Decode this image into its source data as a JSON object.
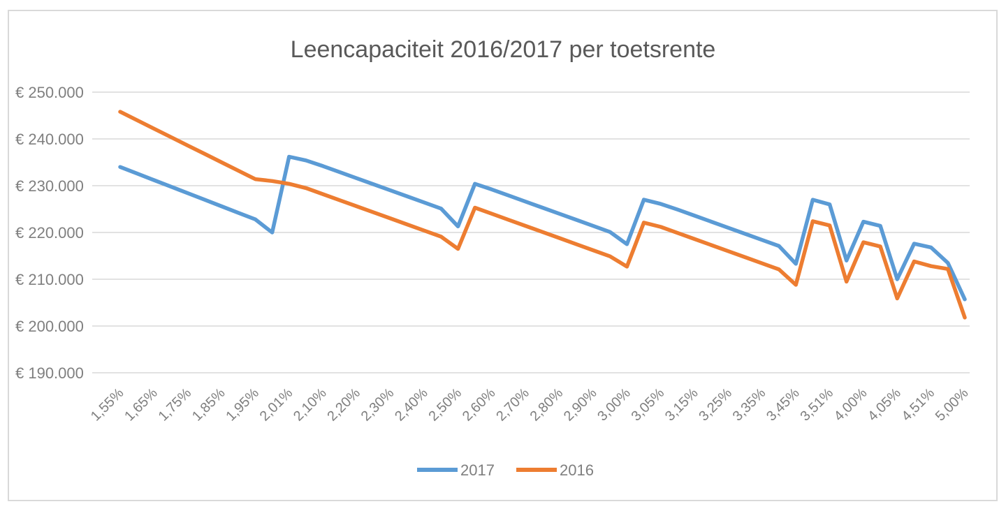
{
  "chart_data": {
    "type": "line",
    "title": "Leencapaciteit 2016/2017 per toetsrente",
    "xlabel": "",
    "ylabel": "",
    "ylim": [
      190000,
      250000
    ],
    "ytick_values": [
      190000,
      200000,
      210000,
      220000,
      230000,
      240000,
      250000
    ],
    "ytick_labels": [
      "€ 190.000",
      "€ 200.000",
      "€ 210.000",
      "€ 220.000",
      "€ 230.000",
      "€ 240.000",
      "€ 250.000"
    ],
    "grid": true,
    "legend_position": "bottom",
    "x": [
      "1,55%",
      "1,60%",
      "1,65%",
      "1,70%",
      "1,75%",
      "1,80%",
      "1,85%",
      "1,90%",
      "1,95%",
      "2,00%",
      "2,01%",
      "2,05%",
      "2,10%",
      "2,15%",
      "2,20%",
      "2,25%",
      "2,30%",
      "2,35%",
      "2,40%",
      "2,45%",
      "2,50%",
      "2,51%",
      "2,60%",
      "2,65%",
      "2,70%",
      "2,75%",
      "2,80%",
      "2,85%",
      "2,90%",
      "2,95%",
      "3,00%",
      "3,01%",
      "3,05%",
      "3,10%",
      "3,15%",
      "3,20%",
      "3,25%",
      "3,30%",
      "3,35%",
      "3,40%",
      "3,45%",
      "3,50%",
      "3,51%",
      "3,55%",
      "4,00%",
      "4,01%",
      "4,05%",
      "4,50%",
      "4,51%",
      "4,55%",
      "5,00%"
    ],
    "xtick_labels": [
      "1,55%",
      "1,65%",
      "1,75%",
      "1,85%",
      "1,95%",
      "2,01%",
      "2,10%",
      "2,20%",
      "2,30%",
      "2,40%",
      "2,50%",
      "2,60%",
      "2,70%",
      "2,80%",
      "2,90%",
      "3,00%",
      "3,05%",
      "3,15%",
      "3,25%",
      "3,35%",
      "3,45%",
      "3,51%",
      "4,00%",
      "4,05%",
      "4,51%",
      "5,00%"
    ],
    "xtick_indices": [
      0,
      2,
      4,
      6,
      8,
      10,
      12,
      14,
      16,
      18,
      20,
      22,
      24,
      26,
      28,
      30,
      32,
      34,
      36,
      38,
      40,
      42,
      44,
      46,
      48,
      50
    ],
    "series": [
      {
        "name": "2017",
        "color": "#5b9bd5",
        "values": [
          234000,
          232600,
          231200,
          229800,
          228400,
          227000,
          225600,
          224200,
          222800,
          220000,
          236200,
          235400,
          234200,
          232900,
          231600,
          230300,
          229000,
          227700,
          226400,
          225100,
          221300,
          230400,
          229200,
          227900,
          226600,
          225300,
          224000,
          222700,
          221400,
          220100,
          217500,
          227000,
          226100,
          224900,
          223600,
          222300,
          221000,
          219700,
          218400,
          217100,
          213300,
          227000,
          226000,
          214000,
          222300,
          221400,
          210000,
          217600,
          216800,
          213500,
          205700
        ]
      },
      {
        "name": "2016",
        "color": "#ed7d31",
        "values": [
          245800,
          244000,
          242200,
          240400,
          238600,
          236800,
          235000,
          233200,
          231400,
          231000,
          230400,
          229500,
          228200,
          226900,
          225600,
          224300,
          223000,
          221700,
          220400,
          219100,
          216500,
          225300,
          224000,
          222700,
          221400,
          220100,
          218800,
          217500,
          216200,
          214900,
          212700,
          222100,
          221200,
          219900,
          218600,
          217300,
          216000,
          214700,
          213400,
          212100,
          208800,
          222400,
          221500,
          209500,
          217900,
          217000,
          205900,
          213800,
          212800,
          212200,
          201800
        ]
      }
    ]
  }
}
